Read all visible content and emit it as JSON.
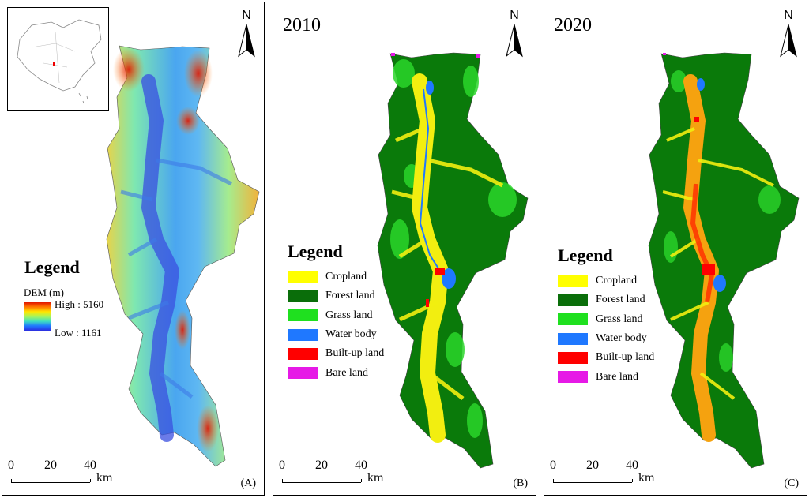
{
  "panels": {
    "a": {
      "letter": "(A)",
      "legend_title": "Legend",
      "dem_title": "DEM (m)",
      "dem_high": "High : 5160",
      "dem_low": "Low : 1161",
      "dem_ramp_colors": [
        "#e11500",
        "#ff7a00",
        "#ffe600",
        "#a8f55a",
        "#3fe0c0",
        "#1f78ff",
        "#2c2ee0"
      ]
    },
    "b": {
      "year": "2010",
      "letter": "(B)",
      "legend_title": "Legend"
    },
    "c": {
      "year": "2020",
      "letter": "(C)",
      "legend_title": "Legend"
    }
  },
  "north_label": "N",
  "scale_bar": {
    "ticks": [
      "0",
      "20",
      "40"
    ],
    "unit": "km"
  },
  "land_use_legend": [
    {
      "label": "Cropland",
      "color": "#ffff00"
    },
    {
      "label": "Forest land",
      "color": "#0a6e0a"
    },
    {
      "label": "Grass land",
      "color": "#1fe01f"
    },
    {
      "label": "Water body",
      "color": "#1f78ff"
    },
    {
      "label": "Built-up land",
      "color": "#ff0000"
    },
    {
      "label": "Bare land",
      "color": "#e619e6"
    }
  ],
  "icons": [
    "north-arrow-icon",
    "china-inset-map-icon"
  ]
}
